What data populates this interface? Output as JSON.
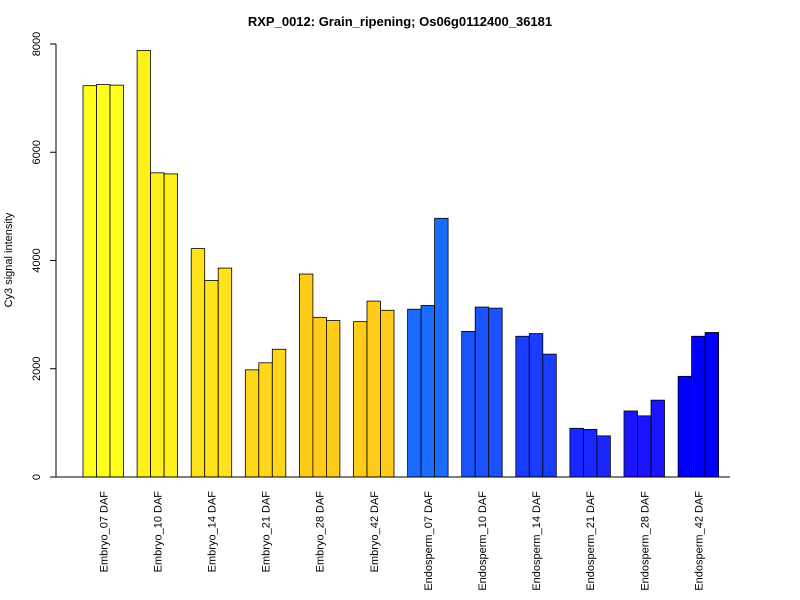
{
  "chart_data": {
    "type": "bar",
    "title": "RXP_0012: Grain_ripening; Os06g0112400_36181",
    "xlabel": "",
    "ylabel": "Cy3 signal intensity",
    "ylim": [
      0,
      8000
    ],
    "yticks": [
      0,
      2000,
      4000,
      6000,
      8000
    ],
    "grid": false,
    "legend": "none",
    "bars_per_group": 3,
    "categories": [
      "Embryo_07 DAF",
      "Embryo_10 DAF",
      "Embryo_14 DAF",
      "Embryo_21 DAF",
      "Embryo_28 DAF",
      "Embryo_42 DAF",
      "Endosperm_07 DAF",
      "Endosperm_10 DAF",
      "Endosperm_14 DAF",
      "Endosperm_21 DAF",
      "Endosperm_28 DAF",
      "Endosperm_42 DAF"
    ],
    "colors": [
      "#ffff1a",
      "#fff01a",
      "#ffe21a",
      "#ffd61a",
      "#ffcc1a",
      "#ffcc1a",
      "#1a6cff",
      "#1a52ff",
      "#1a3cff",
      "#1a28ff",
      "#1a14ff",
      "#0000ff"
    ],
    "values": [
      [
        7230,
        7250,
        7240
      ],
      [
        7880,
        5620,
        5600
      ],
      [
        4220,
        3630,
        3860
      ],
      [
        1980,
        2110,
        2360
      ],
      [
        3750,
        2950,
        2890
      ],
      [
        2870,
        3250,
        3080
      ],
      [
        3100,
        3170,
        4780
      ],
      [
        2690,
        3140,
        3120
      ],
      [
        2600,
        2650,
        2270
      ],
      [
        900,
        880,
        760
      ],
      [
        1220,
        1130,
        1420
      ],
      [
        1860,
        2600,
        2670
      ]
    ]
  }
}
